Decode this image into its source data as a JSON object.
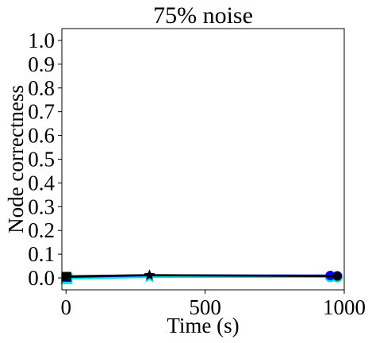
{
  "chart_data": {
    "type": "line",
    "title": "75% noise",
    "xlabel": "Time (s)",
    "ylabel": "Node correctness",
    "xlim": [
      -15,
      1000
    ],
    "ylim": [
      -0.05,
      1.05
    ],
    "xticks": [
      0,
      500,
      1000
    ],
    "xtick_labels": [
      "0",
      "500",
      "1000"
    ],
    "yticks": [
      0.0,
      0.1,
      0.2,
      0.3,
      0.4,
      0.5,
      0.6,
      0.7,
      0.8,
      0.9,
      1.0
    ],
    "ytick_labels": [
      "0.0",
      "0.1",
      "0.2",
      "0.3",
      "0.4",
      "0.5",
      "0.6",
      "0.7",
      "0.8",
      "0.9",
      "1.0"
    ],
    "grid": false,
    "series": [
      {
        "color": "#00e5e5",
        "points": [
          {
            "x": 2,
            "y": -0.003,
            "marker": "square"
          },
          {
            "x": 300,
            "y": 0.004,
            "marker": "star"
          },
          {
            "x": 950,
            "y": 0.005,
            "marker": "circle"
          },
          {
            "x": 975,
            "y": 0.004,
            "marker": "circle"
          }
        ]
      },
      {
        "color": "#0000ee",
        "points": [
          {
            "x": 2,
            "y": 0.004,
            "marker": "square"
          },
          {
            "x": 300,
            "y": 0.011,
            "marker": "star"
          },
          {
            "x": 950,
            "y": 0.01,
            "marker": "circle"
          },
          {
            "x": 975,
            "y": 0.009,
            "marker": "circle"
          }
        ]
      },
      {
        "color": "#000000",
        "points": [
          {
            "x": 2,
            "y": 0.007,
            "marker": "square"
          },
          {
            "x": 300,
            "y": 0.012,
            "marker": "star"
          },
          {
            "x": 975,
            "y": 0.007,
            "marker": "circle"
          }
        ]
      }
    ]
  }
}
